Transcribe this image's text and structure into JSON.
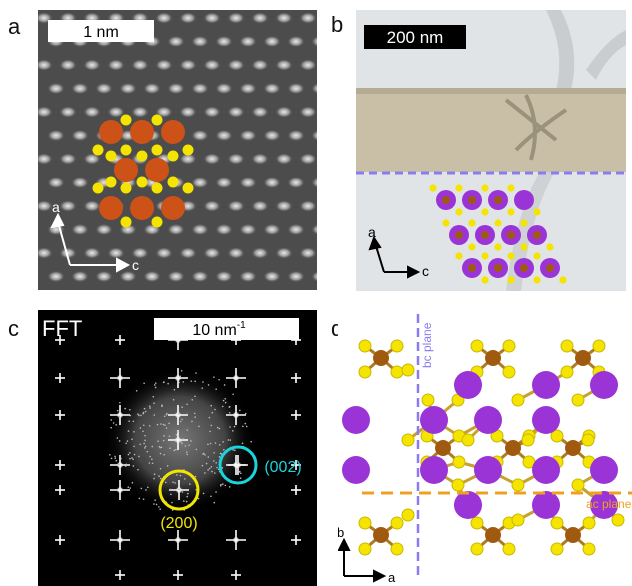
{
  "panels": {
    "a": {
      "label": "a",
      "scale_bar": "1 nm",
      "axis_a": "a",
      "axis_c": "c"
    },
    "b": {
      "label": "b",
      "scale_bar": "200 nm",
      "axis_a": "a",
      "axis_c": "c"
    },
    "c": {
      "label": "c",
      "title": "FFT",
      "scale_bar": "10 nm",
      "scale_bar_sup": "-1",
      "spot_yellow": "(200)",
      "spot_cyan": "(002)"
    },
    "d": {
      "label": "d",
      "bc_plane": "bc plane",
      "ac_plane": "ac plane",
      "axis_b": "b",
      "axis_a": "a"
    }
  },
  "colors": {
    "orange_atom": "#cc5218",
    "yellow_atom": "#f5e400",
    "purple_atom": "#9b34d6",
    "brown_atom": "#a05a10",
    "purple_dash": "#8a7cf0",
    "orange_dash": "#f0a020",
    "cyan_circle": "#1ad4dc",
    "yellow_circle": "#f0e600"
  }
}
